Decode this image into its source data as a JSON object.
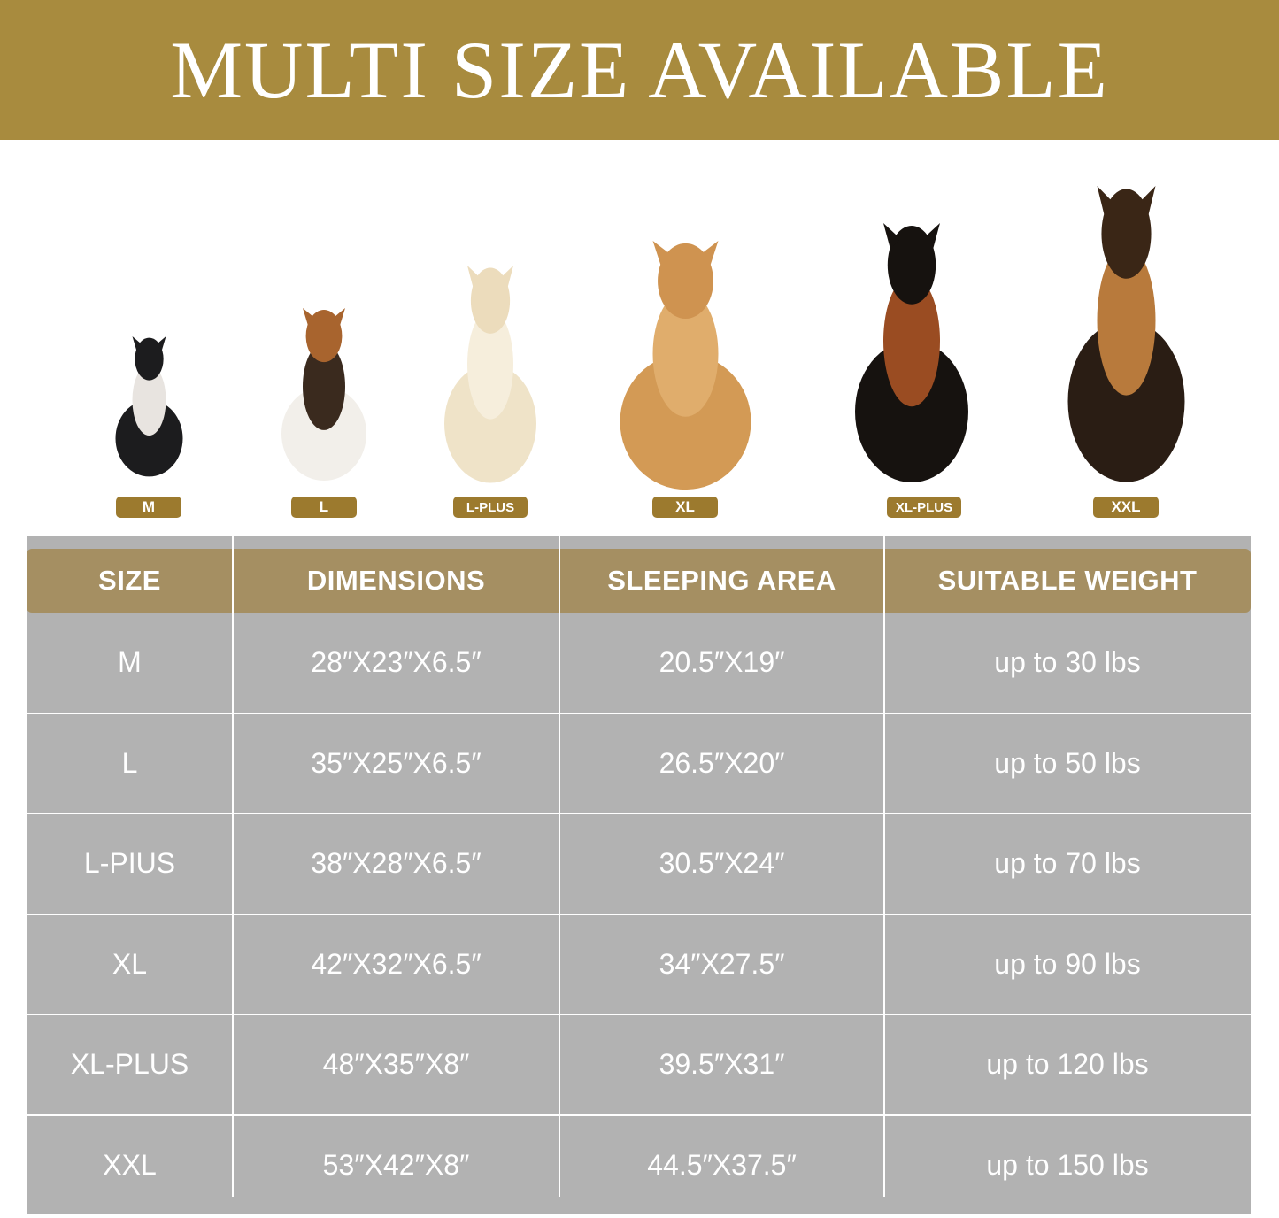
{
  "banner": {
    "title": "MULTI SIZE AVAILABLE"
  },
  "colors": {
    "banner": "#A88B3E",
    "header": "#A58F62",
    "table": "#B2B2B2",
    "badge": "#9C7A2E"
  },
  "dogs": [
    {
      "badge": "M",
      "icon": "french-bulldog"
    },
    {
      "badge": "L",
      "icon": "beagle"
    },
    {
      "badge": "L-PLUS",
      "icon": "labrador"
    },
    {
      "badge": "XL",
      "icon": "golden-retriever"
    },
    {
      "badge": "XL-PLUS",
      "icon": "doberman"
    },
    {
      "badge": "XXL",
      "icon": "german-shepherd"
    }
  ],
  "table": {
    "headers": [
      "SIZE",
      "DIMENSIONS",
      "SLEEPING AREA",
      "SUITABLE WEIGHT"
    ],
    "rows": [
      [
        "M",
        "28″X23″X6.5″",
        "20.5″X19″",
        "up to 30 lbs"
      ],
      [
        "L",
        "35″X25″X6.5″",
        "26.5″X20″",
        "up to 50 lbs"
      ],
      [
        "L-PIUS",
        "38″X28″X6.5″",
        "30.5″X24″",
        "up to 70 lbs"
      ],
      [
        "XL",
        "42″X32″X6.5″",
        "34″X27.5″",
        "up to 90 lbs"
      ],
      [
        "XL-PLUS",
        "48″X35″X8″",
        "39.5″X31″",
        "up to 120 lbs"
      ],
      [
        "XXL",
        "53″X42″X8″",
        "44.5″X37.5″",
        "up to 150 lbs"
      ]
    ]
  }
}
